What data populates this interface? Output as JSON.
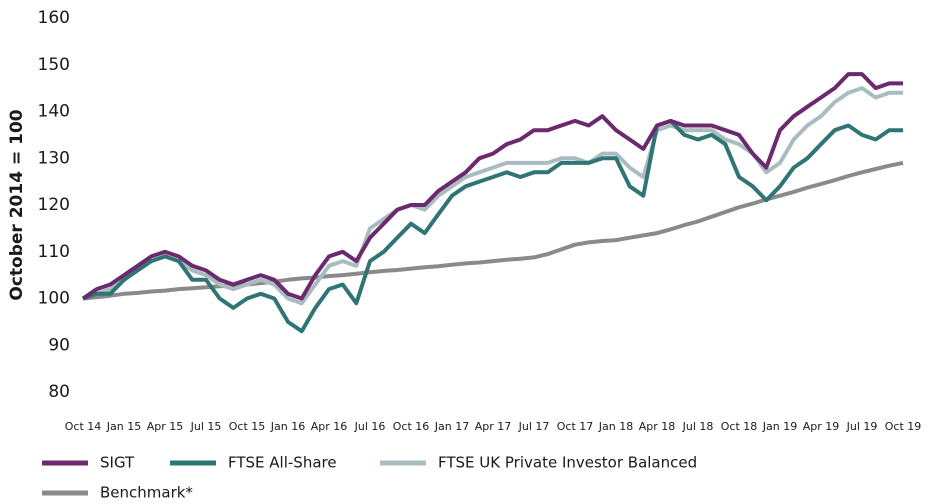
{
  "chart_data": {
    "type": "line",
    "y_label": "October 2014 = 100",
    "categories": [
      "Oct 14",
      null,
      null,
      "Jan 15",
      null,
      null,
      "Apr 15",
      null,
      null,
      "Jul 15",
      null,
      null,
      "Oct 15",
      null,
      null,
      "Jan 16",
      null,
      null,
      "Apr 16",
      null,
      null,
      "Jul 16",
      null,
      null,
      "Oct 16",
      null,
      null,
      "Jan 17",
      null,
      null,
      "Apr 17",
      null,
      null,
      "Jul 17",
      null,
      null,
      "Oct 17",
      null,
      null,
      "Jan 18",
      null,
      null,
      "Apr 18",
      null,
      null,
      "Jul 18",
      null,
      null,
      "Oct 18",
      null,
      null,
      "Jan 19",
      null,
      null,
      "Apr 19",
      null,
      null,
      "Jul 19",
      null,
      null,
      "Oct 19"
    ],
    "series": [
      {
        "name": "SIGT",
        "color": "#6b2a6e",
        "values": [
          100,
          102,
          103,
          105,
          107,
          109,
          110,
          109,
          107,
          106,
          104,
          103,
          104,
          105,
          104,
          101,
          100,
          105,
          109,
          110,
          108,
          113,
          116,
          119,
          120,
          120,
          123,
          125,
          127,
          130,
          131,
          133,
          134,
          136,
          136,
          137,
          138,
          137,
          139,
          136,
          134,
          132,
          137,
          138,
          137,
          137,
          137,
          136,
          135,
          131,
          128,
          136,
          139,
          141,
          143,
          145,
          148,
          148,
          145,
          146,
          146
        ]
      },
      {
        "name": "FTSE All-Share",
        "color": "#2e7573",
        "values": [
          100,
          101,
          101,
          104,
          106,
          108,
          109,
          108,
          104,
          104,
          100,
          98,
          100,
          101,
          100,
          95,
          93,
          98,
          102,
          103,
          99,
          108,
          110,
          113,
          116,
          114,
          118,
          122,
          124,
          125,
          126,
          127,
          126,
          127,
          127,
          129,
          129,
          129,
          130,
          130,
          124,
          122,
          137,
          138,
          135,
          134,
          135,
          133,
          126,
          124,
          121,
          124,
          128,
          130,
          133,
          136,
          137,
          135,
          134,
          136,
          136
        ]
      },
      {
        "name": "FTSE UK Private Investor Balanced",
        "color": "#a9bcc0",
        "values": [
          100,
          101,
          102,
          104,
          106,
          108,
          109,
          108,
          106,
          105,
          103,
          102,
          103,
          104,
          103,
          100,
          99,
          103,
          107,
          108,
          107,
          115,
          117,
          119,
          120,
          119,
          122,
          124,
          126,
          127,
          128,
          129,
          129,
          129,
          129,
          130,
          130,
          129,
          131,
          131,
          128,
          126,
          136,
          137,
          136,
          136,
          136,
          134,
          133,
          131,
          127,
          129,
          134,
          137,
          139,
          142,
          144,
          145,
          143,
          144,
          144
        ]
      },
      {
        "name": "Benchmark*",
        "color": "#8a8a8a",
        "values": [
          100,
          100.3,
          100.6,
          101,
          101.2,
          101.5,
          101.7,
          102,
          102.2,
          102.4,
          102.6,
          102.8,
          103,
          103.3,
          103.6,
          104,
          104.3,
          104.5,
          104.8,
          105,
          105.3,
          105.6,
          105.9,
          106.1,
          106.4,
          106.7,
          106.9,
          107.2,
          107.5,
          107.7,
          108,
          108.3,
          108.5,
          108.8,
          109.5,
          110.5,
          111.5,
          112,
          112.3,
          112.5,
          113,
          113.5,
          114,
          114.8,
          115.7,
          116.5,
          117.5,
          118.5,
          119.5,
          120.3,
          121.2,
          122,
          122.8,
          123.7,
          124.5,
          125.3,
          126.2,
          127,
          127.7,
          128.4,
          129
        ]
      }
    ],
    "ylim": [
      80,
      160
    ],
    "yticks": [
      80,
      90,
      100,
      110,
      120,
      130,
      140,
      150,
      160
    ],
    "grid": false
  }
}
